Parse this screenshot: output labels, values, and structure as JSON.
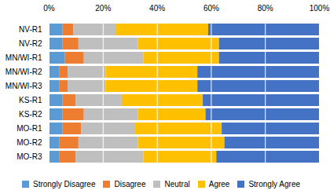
{
  "chart_data": {
    "type": "bar",
    "orientation": "horizontal",
    "stacked": true,
    "categories": [
      "NV-R1",
      "NV-R2",
      "MN/WI-R1",
      "MN/WI-R2",
      "MN/WI-R3",
      "KS-R1",
      "KS-R2",
      "MO-R1",
      "MO-R2",
      "MO-R3"
    ],
    "series": [
      {
        "name": "Strongly Disagree",
        "color": "#5B9BD5",
        "values": [
          5,
          5,
          6,
          4,
          4,
          5,
          5,
          5,
          4,
          4
        ]
      },
      {
        "name": "Disagree",
        "color": "#ED7D31",
        "values": [
          4,
          6,
          7,
          3,
          3,
          5,
          8,
          7,
          7,
          6
        ]
      },
      {
        "name": "Neutral",
        "color": "#BFBFBF",
        "values": [
          16,
          22,
          22,
          14,
          14,
          17,
          20,
          20,
          22,
          25
        ]
      },
      {
        "name": "Agree",
        "color": "#FFC000",
        "values": [
          34,
          30,
          28,
          34,
          34,
          30,
          25,
          32,
          32,
          27
        ]
      },
      {
        "name": "Strongly Agree",
        "color": "#4472C4",
        "values": [
          41,
          37,
          37,
          45,
          45,
          43,
          42,
          36,
          35,
          38
        ]
      }
    ],
    "xlim": [
      0,
      100
    ],
    "xticks": [
      {
        "value": 0,
        "label": "0%"
      },
      {
        "value": 20,
        "label": "20%"
      },
      {
        "value": 40,
        "label": "40%"
      },
      {
        "value": 60,
        "label": "60%"
      },
      {
        "value": 80,
        "label": "80%"
      },
      {
        "value": 100,
        "label": "100%"
      }
    ],
    "grid": true,
    "legend": "bottom"
  }
}
